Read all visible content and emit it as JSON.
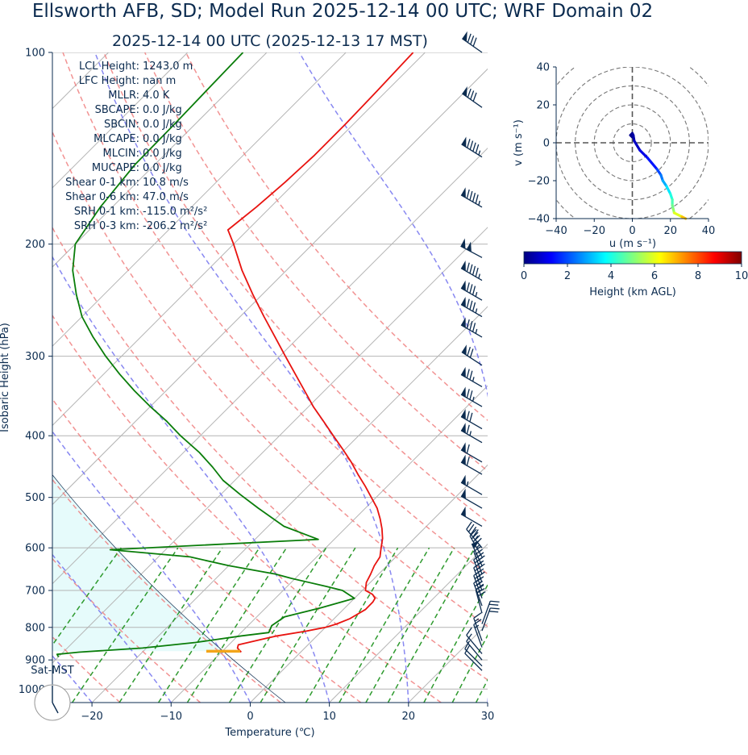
{
  "header": {
    "title": "Ellsworth AFB, SD; Model Run 2025-12-14 00 UTC; WRF Domain 02",
    "subtitle": "2025-12-14 00 UTC  (2025-12-13 17 MST)"
  },
  "colors": {
    "text": "#0b2b4f",
    "temperature": "#e8130f",
    "dewpoint": "#0a7d0a",
    "dry_adiabats": "#f08080",
    "moist_adiabats": "#7b7bf0",
    "mixing_ratio": "#2e9a2e",
    "cape_shade": "#e6fbfb",
    "lcl_marker": "#f3a51a"
  },
  "indices": [
    {
      "label": "LCL Height:",
      "value": "1243.0 m"
    },
    {
      "label": "LFC Height:",
      "value": "nan m"
    },
    {
      "label": "MLLR:",
      "value": "4.0 K"
    },
    {
      "label": "SBCAPE:",
      "value": "0.0 J/kg"
    },
    {
      "label": "SBCIN:",
      "value": "0.0 J/kg"
    },
    {
      "label": "MLCAPE:",
      "value": "0.0 J/kg"
    },
    {
      "label": "MLCIN:",
      "value": "0.0 J/kg"
    },
    {
      "label": "MUCAPE:",
      "value": "0.0 J/kg"
    },
    {
      "label": "Shear 0-1 km:",
      "value": "10.8 m/s"
    },
    {
      "label": "Shear 0-6 km:",
      "value": "47.0 m/s"
    },
    {
      "label": "SRH 0-1 km:",
      "value": "-115.0 m²/s²"
    },
    {
      "label": "SRH 0-3 km:",
      "value": "-206.2 m²/s²"
    }
  ],
  "clock_label": "Sat-MST",
  "chart_data": [
    {
      "type": "line",
      "name": "skew-t",
      "xlabel": "Temperature (℃)",
      "ylabel": "Isobaric Height (hPa)",
      "x_ticks": [
        -20,
        -10,
        0,
        10,
        20,
        30
      ],
      "x_tick_labels": [
        "−20",
        "−10",
        "0",
        "10",
        "20",
        "30"
      ],
      "y_ticks": [
        100,
        200,
        300,
        400,
        500,
        600,
        700,
        800,
        900,
        1000
      ],
      "y_tick_labels": [
        "100",
        "200",
        "300",
        "400",
        "500",
        "600",
        "700",
        "800",
        "900",
        "1000"
      ],
      "xlim": [
        -25,
        30
      ],
      "ylim": [
        1050,
        100
      ],
      "y_scale": "log",
      "skew_degrees": 45,
      "temperature": {
        "pressure": [
          875,
          862,
          852,
          835,
          825,
          811,
          800,
          790,
          775,
          750,
          730,
          720,
          710,
          700,
          680,
          660,
          640,
          620,
          600,
          580,
          560,
          540,
          520,
          500,
          480,
          460,
          440,
          420,
          400,
          380,
          360,
          340,
          320,
          300,
          280,
          260,
          240,
          220,
          200,
          190,
          175,
          160,
          145,
          130,
          115,
          100
        ],
        "values": [
          -7.5,
          -8.5,
          -8.8,
          -6.5,
          -5,
          -2,
          0,
          1,
          2,
          2.8,
          2.8,
          2.6,
          1.8,
          0.4,
          -0.5,
          -1,
          -1.6,
          -2,
          -3,
          -4,
          -5.3,
          -6.8,
          -8.5,
          -10.6,
          -12.8,
          -15.2,
          -17.6,
          -20.3,
          -23.2,
          -26.2,
          -29.4,
          -32.5,
          -35.8,
          -39.3,
          -43,
          -47,
          -51.2,
          -55.6,
          -60,
          -62.5,
          -61.8,
          -61.3,
          -61,
          -61,
          -61.2,
          -61.5
        ]
      },
      "dewpoint": {
        "pressure": [
          890,
          882,
          875,
          862,
          845,
          825,
          815,
          795,
          770,
          745,
          720,
          700,
          690,
          670,
          660,
          640,
          620,
          604,
          582,
          555,
          520,
          495,
          470,
          448,
          425,
          400,
          380,
          360,
          340,
          320,
          300,
          280,
          260,
          240,
          220,
          200,
          175,
          150,
          130,
          115,
          100
        ],
        "values": [
          -30,
          -30.5,
          -28,
          -20.5,
          -14.5,
          -9.5,
          -6.5,
          -7,
          -6.5,
          -3,
          0,
          -2.5,
          -5,
          -10.5,
          -13,
          -20,
          -26,
          -37,
          -12,
          -18,
          -23.5,
          -27.5,
          -31.5,
          -34.5,
          -38,
          -42.5,
          -46,
          -50,
          -54,
          -58,
          -62,
          -66,
          -70,
          -73.5,
          -77,
          -80,
          -81.5,
          -82.5,
          -82.6,
          -82.8,
          -83
        ]
      },
      "lcl": {
        "pressure": 872,
        "temperature": -9.9
      },
      "wind_barbs": {
        "pressure": [
          100,
          122,
          146,
          175,
          210,
          228,
          245,
          260,
          280,
          310,
          335,
          360,
          390,
          410,
          440,
          460,
          495,
          520,
          555,
          600,
          620,
          640,
          660,
          680,
          700,
          720,
          740,
          760,
          790,
          810,
          840,
          860,
          880,
          900,
          920,
          935
        ],
        "speed_kt": [
          80,
          80,
          95,
          95,
          100,
          95,
          85,
          85,
          85,
          70,
          75,
          75,
          70,
          65,
          60,
          60,
          55,
          50,
          50,
          45,
          45,
          50,
          45,
          40,
          40,
          35,
          35,
          30,
          20,
          20,
          15,
          15,
          10,
          10,
          10,
          10
        ],
        "direction_deg": [
          305,
          305,
          302,
          300,
          298,
          300,
          300,
          300,
          300,
          303,
          300,
          300,
          300,
          300,
          300,
          300,
          300,
          300,
          300,
          320,
          330,
          335,
          340,
          340,
          340,
          340,
          340,
          345,
          20,
          20,
          340,
          340,
          320,
          320,
          315,
          315
        ]
      }
    },
    {
      "type": "line",
      "name": "hodograph",
      "xlabel": "u (m s⁻¹)",
      "ylabel": "v (m s⁻¹)",
      "xlim": [
        -40,
        40
      ],
      "ylim": [
        -40,
        40
      ],
      "ticks": [
        -40,
        -20,
        0,
        20,
        40
      ],
      "tick_labels": [
        "−40",
        "−20",
        "0",
        "20",
        "40"
      ],
      "u": [
        0,
        -1,
        0,
        0.5,
        1,
        4,
        8,
        13,
        15,
        16,
        18,
        20,
        21,
        21,
        21.5,
        22,
        26,
        28
      ],
      "v": [
        3,
        4,
        5,
        4,
        1,
        -4,
        -8,
        -14,
        -17,
        -20,
        -23,
        -27,
        -30,
        -33,
        -35,
        -37,
        -39,
        -40
      ],
      "height_km": [
        0,
        0.1,
        0.2,
        0.3,
        0.5,
        0.8,
        1.2,
        1.7,
        2.2,
        2.7,
        3.2,
        3.8,
        4.3,
        4.7,
        5.0,
        5.4,
        6.5,
        7.2
      ],
      "colorbar": {
        "label": "Height (km AGL)",
        "range": [
          0,
          10
        ],
        "ticks": [
          0,
          2,
          4,
          6,
          8,
          10
        ],
        "tick_labels": [
          "0",
          "2",
          "4",
          "6",
          "8",
          "10"
        ],
        "colormap": "jet"
      }
    }
  ]
}
